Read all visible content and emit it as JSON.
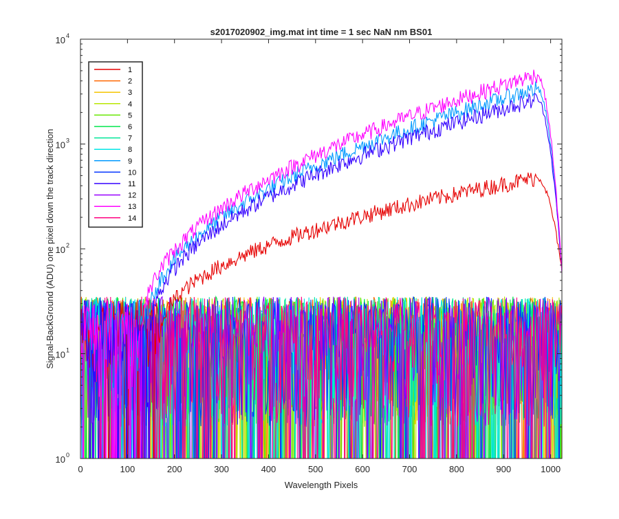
{
  "chart_data": {
    "type": "line",
    "title": "s2017020902_img.mat int time = 1 sec  NaN nm BS01",
    "xlabel": "Wavelength Pixels",
    "ylabel": "Signal-BackGround (ADU) one pixel down the track direction",
    "xlim": [
      0,
      1024
    ],
    "ylim": [
      1,
      10000
    ],
    "y_scale": "log",
    "x_ticks": [
      "0",
      "100",
      "200",
      "300",
      "400",
      "500",
      "600",
      "700",
      "800",
      "900",
      "1000"
    ],
    "y_ticks": [
      {
        "base": "10",
        "exp": "0"
      },
      {
        "base": "10",
        "exp": "1"
      },
      {
        "base": "10",
        "exp": "2"
      },
      {
        "base": "10",
        "exp": "3"
      },
      {
        "base": "10",
        "exp": "4"
      }
    ],
    "legend_position": "top-left",
    "grid": false,
    "series": [
      {
        "name": "1",
        "color": "#e60000",
        "kind": "signal",
        "plateau": 480,
        "x_start": 170
      },
      {
        "name": "2",
        "color": "#ff6600",
        "kind": "noise"
      },
      {
        "name": "3",
        "color": "#f5c400",
        "kind": "noise"
      },
      {
        "name": "4",
        "color": "#b8e600",
        "kind": "noise"
      },
      {
        "name": "5",
        "color": "#66e600",
        "kind": "noise"
      },
      {
        "name": "6",
        "color": "#00e64d",
        "kind": "noise"
      },
      {
        "name": "7",
        "color": "#00e699",
        "kind": "noise"
      },
      {
        "name": "8",
        "color": "#00e6e6",
        "kind": "noise"
      },
      {
        "name": "9",
        "color": "#0099ff",
        "kind": "signal",
        "plateau": 3400,
        "x_start": 140
      },
      {
        "name": "10",
        "color": "#0033ff",
        "kind": "noise"
      },
      {
        "name": "11",
        "color": "#3300ff",
        "kind": "signal",
        "plateau": 2700,
        "x_start": 150
      },
      {
        "name": "12",
        "color": "#9900ff",
        "kind": "noise"
      },
      {
        "name": "13",
        "color": "#ff00ff",
        "kind": "signal",
        "plateau": 4600,
        "x_start": 130
      },
      {
        "name": "14",
        "color": "#ff0080",
        "kind": "noise"
      }
    ],
    "noise_range": [
      1,
      35
    ],
    "signal_peak_x": 970,
    "signal_end_x": 1024
  }
}
